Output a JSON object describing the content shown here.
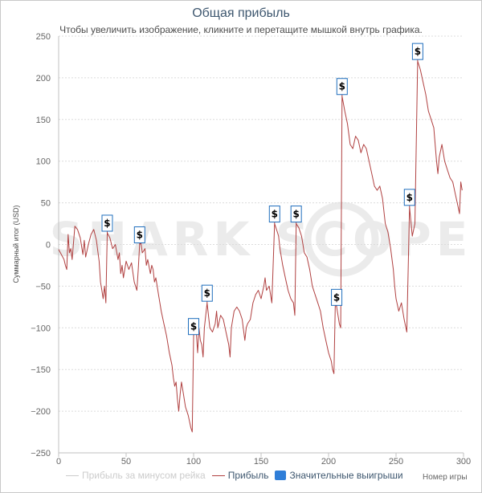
{
  "chart_data": {
    "type": "line",
    "title": "Общая прибыль",
    "subtitle": "Чтобы увеличить изображение, кликните и перетащите мышкой внутрь графика.",
    "xlabel": "Номер игры",
    "ylabel": "Суммарный итог (USD)",
    "xlim": [
      0,
      300
    ],
    "ylim": [
      -250,
      250
    ],
    "x_ticks": [
      0,
      50,
      100,
      150,
      200,
      250,
      300
    ],
    "y_ticks": [
      250,
      200,
      150,
      100,
      50,
      0,
      -50,
      -100,
      -150,
      -200,
      -250
    ],
    "grid": "horizontal dashed",
    "watermark": "SHARK SCOPE",
    "series": [
      {
        "name": "Прибыль за минусом рейка",
        "color": "#cccccc",
        "visible": false,
        "points": []
      },
      {
        "name": "Прибыль",
        "color": "#b04040",
        "visible": true,
        "points": [
          [
            0,
            -6
          ],
          [
            2,
            -12
          ],
          [
            4,
            -18
          ],
          [
            5,
            -25
          ],
          [
            6,
            -30
          ],
          [
            7,
            12
          ],
          [
            8,
            -10
          ],
          [
            9,
            -5
          ],
          [
            10,
            -18
          ],
          [
            12,
            22
          ],
          [
            14,
            18
          ],
          [
            16,
            8
          ],
          [
            18,
            -12
          ],
          [
            19,
            5
          ],
          [
            20,
            -15
          ],
          [
            22,
            0
          ],
          [
            24,
            12
          ],
          [
            26,
            18
          ],
          [
            28,
            5
          ],
          [
            30,
            -20
          ],
          [
            31,
            -45
          ],
          [
            32,
            -55
          ],
          [
            33,
            -65
          ],
          [
            34,
            -50
          ],
          [
            35,
            -70
          ],
          [
            36,
            14
          ],
          [
            38,
            8
          ],
          [
            40,
            -5
          ],
          [
            42,
            0
          ],
          [
            44,
            -18
          ],
          [
            45,
            -10
          ],
          [
            46,
            -35
          ],
          [
            47,
            -25
          ],
          [
            48,
            -40
          ],
          [
            50,
            -20
          ],
          [
            52,
            -30
          ],
          [
            54,
            -22
          ],
          [
            56,
            -45
          ],
          [
            58,
            -55
          ],
          [
            59,
            -30
          ],
          [
            60,
            0
          ],
          [
            61,
            2
          ],
          [
            62,
            -10
          ],
          [
            64,
            -5
          ],
          [
            65,
            -25
          ],
          [
            66,
            -18
          ],
          [
            68,
            -35
          ],
          [
            69,
            -25
          ],
          [
            70,
            -30
          ],
          [
            71,
            -45
          ],
          [
            72,
            -40
          ],
          [
            74,
            -60
          ],
          [
            76,
            -80
          ],
          [
            78,
            -95
          ],
          [
            80,
            -110
          ],
          [
            82,
            -130
          ],
          [
            84,
            -145
          ],
          [
            85,
            -160
          ],
          [
            86,
            -170
          ],
          [
            87,
            -165
          ],
          [
            88,
            -185
          ],
          [
            89,
            -200
          ],
          [
            90,
            -180
          ],
          [
            91,
            -165
          ],
          [
            92,
            -175
          ],
          [
            94,
            -195
          ],
          [
            96,
            -205
          ],
          [
            98,
            -220
          ],
          [
            99,
            -225
          ],
          [
            100,
            -110
          ],
          [
            101,
            -95
          ],
          [
            102,
            -105
          ],
          [
            103,
            -130
          ],
          [
            104,
            -100
          ],
          [
            105,
            -115
          ],
          [
            106,
            -120
          ],
          [
            107,
            -135
          ],
          [
            108,
            -100
          ],
          [
            110,
            -70
          ],
          [
            112,
            -100
          ],
          [
            114,
            -105
          ],
          [
            116,
            -95
          ],
          [
            117,
            -80
          ],
          [
            118,
            -100
          ],
          [
            120,
            -85
          ],
          [
            122,
            -90
          ],
          [
            124,
            -105
          ],
          [
            126,
            -120
          ],
          [
            127,
            -135
          ],
          [
            128,
            -100
          ],
          [
            130,
            -80
          ],
          [
            132,
            -75
          ],
          [
            134,
            -80
          ],
          [
            136,
            -90
          ],
          [
            138,
            -115
          ],
          [
            139,
            -100
          ],
          [
            140,
            -95
          ],
          [
            142,
            -90
          ],
          [
            144,
            -70
          ],
          [
            145,
            -65
          ],
          [
            146,
            -60
          ],
          [
            148,
            -55
          ],
          [
            150,
            -65
          ],
          [
            152,
            -50
          ],
          [
            153,
            -40
          ],
          [
            154,
            -55
          ],
          [
            156,
            -50
          ],
          [
            158,
            -70
          ],
          [
            160,
            25
          ],
          [
            162,
            15
          ],
          [
            163,
            10
          ],
          [
            164,
            -5
          ],
          [
            166,
            -25
          ],
          [
            168,
            -40
          ],
          [
            170,
            -55
          ],
          [
            172,
            -65
          ],
          [
            174,
            -70
          ],
          [
            175,
            -85
          ],
          [
            176,
            25
          ],
          [
            178,
            20
          ],
          [
            180,
            10
          ],
          [
            182,
            -10
          ],
          [
            184,
            -15
          ],
          [
            186,
            -30
          ],
          [
            188,
            -50
          ],
          [
            190,
            -60
          ],
          [
            192,
            -70
          ],
          [
            194,
            -80
          ],
          [
            196,
            -100
          ],
          [
            198,
            -115
          ],
          [
            200,
            -130
          ],
          [
            202,
            -140
          ],
          [
            203,
            -150
          ],
          [
            204,
            -155
          ],
          [
            205,
            -70
          ],
          [
            206,
            -75
          ],
          [
            208,
            -95
          ],
          [
            209,
            -100
          ],
          [
            210,
            178
          ],
          [
            212,
            160
          ],
          [
            214,
            145
          ],
          [
            216,
            120
          ],
          [
            218,
            115
          ],
          [
            220,
            130
          ],
          [
            222,
            125
          ],
          [
            224,
            110
          ],
          [
            226,
            120
          ],
          [
            228,
            115
          ],
          [
            230,
            100
          ],
          [
            232,
            85
          ],
          [
            234,
            70
          ],
          [
            236,
            65
          ],
          [
            238,
            70
          ],
          [
            240,
            55
          ],
          [
            241,
            40
          ],
          [
            242,
            25
          ],
          [
            244,
            15
          ],
          [
            246,
            -5
          ],
          [
            248,
            -30
          ],
          [
            249,
            -50
          ],
          [
            250,
            -65
          ],
          [
            252,
            -80
          ],
          [
            254,
            -70
          ],
          [
            256,
            -90
          ],
          [
            258,
            -105
          ],
          [
            260,
            45
          ],
          [
            262,
            10
          ],
          [
            264,
            25
          ],
          [
            266,
            220
          ],
          [
            268,
            210
          ],
          [
            270,
            195
          ],
          [
            272,
            180
          ],
          [
            274,
            160
          ],
          [
            276,
            150
          ],
          [
            278,
            140
          ],
          [
            280,
            100
          ],
          [
            281,
            85
          ],
          [
            282,
            105
          ],
          [
            284,
            120
          ],
          [
            286,
            100
          ],
          [
            288,
            90
          ],
          [
            290,
            80
          ],
          [
            292,
            75
          ],
          [
            294,
            60
          ],
          [
            296,
            45
          ],
          [
            297,
            37
          ],
          [
            298,
            75
          ],
          [
            299,
            65
          ]
        ]
      }
    ],
    "big_wins": {
      "name": "Значительные выигрыши",
      "color": "#1f6ebd",
      "marker_symbol": "$",
      "points": [
        [
          36,
          14
        ],
        [
          60,
          0
        ],
        [
          100,
          -110
        ],
        [
          110,
          -70
        ],
        [
          160,
          25
        ],
        [
          176,
          25
        ],
        [
          206,
          -75
        ],
        [
          210,
          178
        ],
        [
          260,
          45
        ],
        [
          266,
          220
        ]
      ]
    }
  }
}
